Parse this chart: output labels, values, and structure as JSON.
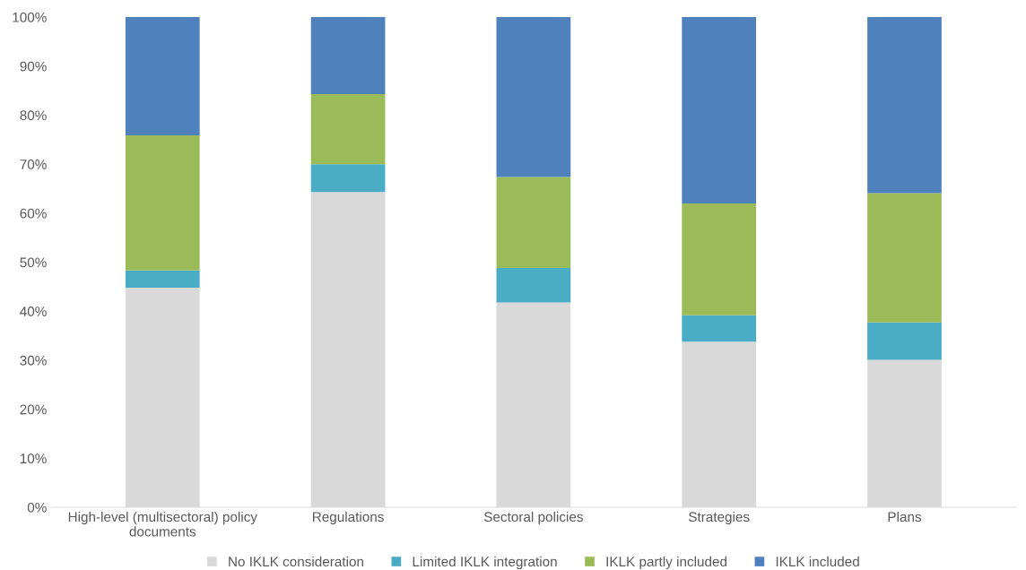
{
  "chart_data": {
    "type": "bar",
    "stacked": true,
    "categories": [
      "High-level (multisectoral) policy\ndocuments",
      "Regulations",
      "Sectoral policies",
      "Strategies",
      "Plans"
    ],
    "series": [
      {
        "name": "No IKLK consideration",
        "color": "#d9d9d9",
        "values": [
          44.8,
          64.3,
          41.8,
          33.8,
          30.1
        ]
      },
      {
        "name": "Limited IKLK integration",
        "color": "#4bacc6",
        "values": [
          3.5,
          5.7,
          7.0,
          5.4,
          7.6
        ]
      },
      {
        "name": "IKLK partly included",
        "color": "#9bbb59",
        "values": [
          27.6,
          14.3,
          18.6,
          22.8,
          26.4
        ]
      },
      {
        "name": "IKLK included",
        "color": "#4f81bd",
        "values": [
          24.1,
          15.7,
          32.6,
          38.0,
          35.9
        ]
      }
    ],
    "ylim": [
      0,
      100
    ],
    "yticks": [
      {
        "value": 0,
        "label": "0%"
      },
      {
        "value": 10,
        "label": "10%"
      },
      {
        "value": 20,
        "label": "20%"
      },
      {
        "value": 30,
        "label": "30%"
      },
      {
        "value": 40,
        "label": "40%"
      },
      {
        "value": 50,
        "label": "50%"
      },
      {
        "value": 60,
        "label": "60%"
      },
      {
        "value": 70,
        "label": "70%"
      },
      {
        "value": 80,
        "label": "80%"
      },
      {
        "value": 90,
        "label": "90%"
      },
      {
        "value": 100,
        "label": "100%"
      }
    ],
    "grid": false,
    "legend": "bottom"
  }
}
